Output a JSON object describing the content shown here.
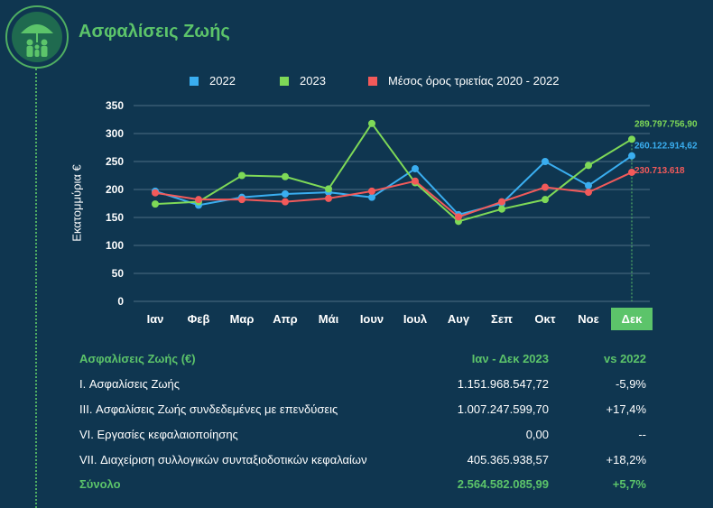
{
  "page": {
    "title": "Ασφαλίσεις Ζωής",
    "logo_icon": "umbrella-family-icon"
  },
  "chart_data": {
    "type": "line",
    "categories": [
      "Ιαν",
      "Φεβ",
      "Μαρ",
      "Απρ",
      "Μάι",
      "Ιουν",
      "Ιουλ",
      "Αυγ",
      "Σεπ",
      "Οκτ",
      "Νοε",
      "Δεκ"
    ],
    "highlighted_category": "Δεκ",
    "ylabel": "Εκατομμύρια €",
    "ylim": [
      0,
      350
    ],
    "yticks": [
      0,
      50,
      100,
      150,
      200,
      250,
      300,
      350
    ],
    "grid": true,
    "legend_position": "top",
    "series": [
      {
        "name": "2022",
        "color": "#3aaef0",
        "values": [
          197,
          172,
          186,
          192,
          195,
          186,
          237,
          155,
          175,
          250,
          207,
          260.12
        ],
        "end_label": "260.122.914,62"
      },
      {
        "name": "2023",
        "color": "#7ed957",
        "values": [
          174,
          178,
          225,
          223,
          201,
          318,
          212,
          143,
          165,
          182,
          243,
          289.8
        ],
        "end_label": "289.797.756,90"
      },
      {
        "name": "Μέσος όρος τριετίας 2020 - 2022",
        "color": "#f25a5a",
        "values": [
          194,
          182,
          182,
          178,
          184,
          197,
          215,
          151,
          178,
          204,
          195,
          230.71
        ],
        "end_label": "230.713.618"
      }
    ]
  },
  "table": {
    "header": {
      "label": "Ασφαλίσεις Ζωής (€)",
      "col1": "Ιαν - Δεκ 2023",
      "col2": "vs 2022"
    },
    "rows": [
      {
        "label": "I. Ασφαλίσεις  Ζωής",
        "value": "1.151.968.547,72",
        "vs": "-5,9%"
      },
      {
        "label": "III. Ασφαλίσεις  Ζωής  συνδεδεμένες με επενδύσεις",
        "value": "1.007.247.599,70",
        "vs": "+17,4%"
      },
      {
        "label": "VI. Εργασίες κεφαλαιοποίησης",
        "value": "0,00",
        "vs": "--"
      },
      {
        "label": "VII. Διαχείριση συλλογικών συνταξιοδοτικών κεφαλαίων",
        "value": "405.365.938,57",
        "vs": "+18,2%"
      }
    ],
    "total": {
      "label": "Σύνολο",
      "value": "2.564.582.085,99",
      "vs": "+5,7%"
    }
  }
}
